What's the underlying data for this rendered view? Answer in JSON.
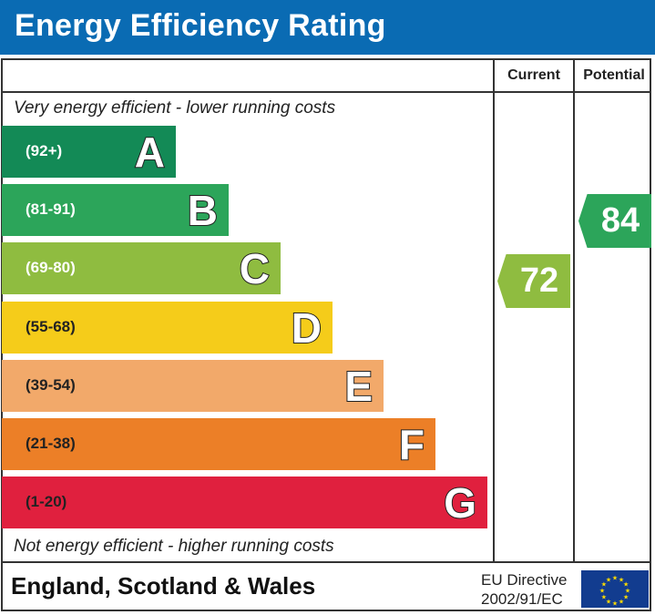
{
  "title": "Energy Efficiency Rating",
  "columns": {
    "current": "Current",
    "potential": "Potential"
  },
  "top_note": "Very energy efficient - lower running costs",
  "bottom_note": "Not energy efficient - higher running costs",
  "chart_data": {
    "type": "bar",
    "bands": [
      {
        "letter": "A",
        "range": "(92+)",
        "color": "#138a56"
      },
      {
        "letter": "B",
        "range": "(81-91)",
        "color": "#2ca55a"
      },
      {
        "letter": "C",
        "range": "(69-80)",
        "color": "#8fbc40"
      },
      {
        "letter": "D",
        "range": "(55-68)",
        "color": "#f5cc1a"
      },
      {
        "letter": "E",
        "range": "(39-54)",
        "color": "#f2a96a"
      },
      {
        "letter": "F",
        "range": "(21-38)",
        "color": "#ec7f27"
      },
      {
        "letter": "G",
        "range": "(1-20)",
        "color": "#e0203e"
      }
    ],
    "current": {
      "value": "72",
      "band": "C",
      "color": "#8fbc40"
    },
    "potential": {
      "value": "84",
      "band": "B",
      "color": "#2ca55a"
    }
  },
  "footer": {
    "region": "England, Scotland & Wales",
    "directive_line1": "EU Directive",
    "directive_line2": "2002/91/EC"
  }
}
